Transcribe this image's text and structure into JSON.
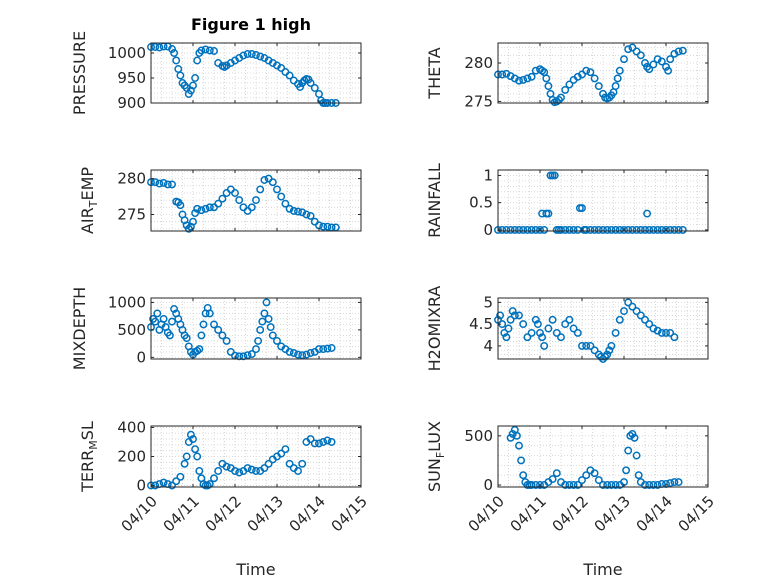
{
  "figure_title": "Figure 1 high",
  "colors": {
    "marker": "#0072BD",
    "grid": "#cfcfcf",
    "axis": "#262626"
  },
  "chart_data": [
    {
      "type": "scatter",
      "ylabel": "PRESSURE",
      "ylim": [
        900,
        1020
      ],
      "yticks": [
        900,
        950,
        1000
      ],
      "ytick_labels": [
        "900",
        "950",
        "1000"
      ],
      "xlim": [
        0,
        5
      ],
      "xticks": [
        0,
        1,
        2,
        3,
        4,
        5
      ],
      "grid": true,
      "x_tick_labels": [],
      "xlabel": "",
      "x": [
        0.0,
        0.1,
        0.2,
        0.3,
        0.4,
        0.5,
        0.55,
        0.6,
        0.65,
        0.7,
        0.75,
        0.8,
        0.85,
        0.9,
        0.95,
        1.0,
        1.05,
        1.1,
        1.15,
        1.2,
        1.3,
        1.4,
        1.5,
        1.6,
        1.7,
        1.75,
        1.8,
        1.9,
        2.0,
        2.1,
        2.2,
        2.3,
        2.4,
        2.5,
        2.6,
        2.7,
        2.8,
        2.9,
        3.0,
        3.1,
        3.2,
        3.3,
        3.4,
        3.5,
        3.55,
        3.6,
        3.65,
        3.7,
        3.75,
        3.8,
        3.9,
        4.0,
        4.05,
        4.1,
        4.15,
        4.2,
        4.3,
        4.4
      ],
      "y": [
        1012,
        1012,
        1011,
        1013,
        1013,
        1008,
        1000,
        985,
        968,
        955,
        940,
        935,
        930,
        918,
        925,
        935,
        950,
        985,
        1000,
        1005,
        1007,
        1005,
        1004,
        980,
        974,
        972,
        975,
        980,
        985,
        990,
        995,
        998,
        998,
        996,
        993,
        990,
        985,
        980,
        975,
        970,
        962,
        955,
        945,
        938,
        932,
        940,
        945,
        948,
        947,
        940,
        930,
        918,
        905,
        900,
        900,
        900,
        900,
        900
      ]
    },
    {
      "type": "scatter",
      "ylabel": "THETA",
      "ylim": [
        274.8,
        282.6
      ],
      "yticks": [
        275,
        280
      ],
      "ytick_labels": [
        "275",
        "280"
      ],
      "xlim": [
        0,
        5
      ],
      "xticks": [
        0,
        1,
        2,
        3,
        4,
        5
      ],
      "grid": true,
      "x_tick_labels": [],
      "xlabel": "",
      "x": [
        0.0,
        0.1,
        0.2,
        0.3,
        0.4,
        0.5,
        0.6,
        0.7,
        0.8,
        0.9,
        1.0,
        1.05,
        1.1,
        1.15,
        1.2,
        1.25,
        1.3,
        1.35,
        1.4,
        1.45,
        1.5,
        1.6,
        1.7,
        1.8,
        1.9,
        2.0,
        2.1,
        2.2,
        2.3,
        2.4,
        2.5,
        2.55,
        2.6,
        2.65,
        2.7,
        2.75,
        2.8,
        2.85,
        2.9,
        3.0,
        3.1,
        3.2,
        3.3,
        3.4,
        3.5,
        3.55,
        3.6,
        3.7,
        3.8,
        3.9,
        4.0,
        4.05,
        4.1,
        4.2,
        4.3,
        4.4
      ],
      "y": [
        278.5,
        278.5,
        278.6,
        278.3,
        278.0,
        277.7,
        277.8,
        278.0,
        278.2,
        279.0,
        279.2,
        279.0,
        278.8,
        278.0,
        277.0,
        276.0,
        275.2,
        274.9,
        275.0,
        275.2,
        275.5,
        276.5,
        277.2,
        277.8,
        278.2,
        278.5,
        279.0,
        278.8,
        278.0,
        277.0,
        276.0,
        275.5,
        275.4,
        275.5,
        275.8,
        276.2,
        277.0,
        278.0,
        279.0,
        280.5,
        281.8,
        282.0,
        281.5,
        281.0,
        280.0,
        279.5,
        279.2,
        279.8,
        280.5,
        280.2,
        279.5,
        279.0,
        280.5,
        281.2,
        281.5,
        281.6
      ]
    },
    {
      "type": "scatter",
      "ylabel": "AIR_TEMP",
      "ylim": [
        272.7,
        281.2
      ],
      "yticks": [
        275,
        280
      ],
      "ytick_labels": [
        "275",
        "280"
      ],
      "xlim": [
        0,
        5
      ],
      "xticks": [
        0,
        1,
        2,
        3,
        4,
        5
      ],
      "grid": true,
      "x_tick_labels": [],
      "xlabel": "",
      "x": [
        0.0,
        0.1,
        0.2,
        0.3,
        0.4,
        0.5,
        0.6,
        0.65,
        0.7,
        0.75,
        0.8,
        0.85,
        0.9,
        0.95,
        1.0,
        1.05,
        1.1,
        1.2,
        1.3,
        1.4,
        1.5,
        1.6,
        1.7,
        1.8,
        1.9,
        2.0,
        2.1,
        2.2,
        2.3,
        2.4,
        2.5,
        2.6,
        2.7,
        2.8,
        2.9,
        3.0,
        3.1,
        3.2,
        3.3,
        3.4,
        3.5,
        3.6,
        3.7,
        3.8,
        3.9,
        4.0,
        4.1,
        4.2,
        4.3,
        4.4
      ],
      "y": [
        279.5,
        279.5,
        279.3,
        279.4,
        279.2,
        279.2,
        276.8,
        276.7,
        276.3,
        275.0,
        274.2,
        273.5,
        273.0,
        273.3,
        274.0,
        275.2,
        275.8,
        275.6,
        275.8,
        276.0,
        276.0,
        276.5,
        277.2,
        278.0,
        278.5,
        278.0,
        277.0,
        276.0,
        275.5,
        276.0,
        277.0,
        278.5,
        279.8,
        280.0,
        279.5,
        278.5,
        277.5,
        276.5,
        275.8,
        275.5,
        275.4,
        275.3,
        275.0,
        274.8,
        274.0,
        273.5,
        273.3,
        273.3,
        273.2,
        273.2
      ]
    },
    {
      "type": "scatter",
      "ylabel": "RAINFALL",
      "ylim": [
        -0.02,
        1.1
      ],
      "yticks": [
        0,
        0.5,
        1
      ],
      "ytick_labels": [
        "0",
        "0.5",
        "1"
      ],
      "xlim": [
        0,
        5
      ],
      "xticks": [
        0,
        1,
        2,
        3,
        4,
        5
      ],
      "grid": true,
      "x_tick_labels": [],
      "xlabel": "",
      "x": [
        0.0,
        0.1,
        0.2,
        0.3,
        0.4,
        0.5,
        0.6,
        0.7,
        0.8,
        0.9,
        1.0,
        1.05,
        1.1,
        1.15,
        1.2,
        1.25,
        1.3,
        1.35,
        1.4,
        1.45,
        1.5,
        1.6,
        1.7,
        1.8,
        1.9,
        1.95,
        2.0,
        2.05,
        2.1,
        2.2,
        2.3,
        2.4,
        2.5,
        2.6,
        2.7,
        2.8,
        2.9,
        3.0,
        3.1,
        3.2,
        3.3,
        3.4,
        3.5,
        3.55,
        3.6,
        3.7,
        3.8,
        3.9,
        4.0,
        4.1,
        4.2,
        4.3,
        4.4
      ],
      "y": [
        0,
        0,
        0,
        0,
        0,
        0,
        0,
        0,
        0,
        0,
        0,
        0.3,
        0,
        0.3,
        0.3,
        1.0,
        1.0,
        1.0,
        0,
        0,
        0,
        0,
        0,
        0,
        0,
        0.4,
        0.4,
        0,
        0,
        0,
        0,
        0,
        0,
        0,
        0,
        0,
        0,
        0,
        0,
        0,
        0,
        0,
        0,
        0.3,
        0,
        0,
        0,
        0,
        0,
        0,
        0,
        0,
        0
      ]
    },
    {
      "type": "scatter",
      "ylabel": "MIXDEPTH",
      "ylim": [
        -30,
        1080
      ],
      "yticks": [
        0,
        500,
        1000
      ],
      "ytick_labels": [
        "0",
        "500",
        "1000"
      ],
      "xlim": [
        0,
        5
      ],
      "xticks": [
        0,
        1,
        2,
        3,
        4,
        5
      ],
      "grid": true,
      "x_tick_labels": [],
      "xlabel": "",
      "x": [
        0.0,
        0.05,
        0.1,
        0.15,
        0.2,
        0.25,
        0.3,
        0.35,
        0.4,
        0.45,
        0.5,
        0.55,
        0.6,
        0.65,
        0.7,
        0.75,
        0.8,
        0.85,
        0.9,
        0.95,
        1.0,
        1.05,
        1.1,
        1.15,
        1.2,
        1.25,
        1.3,
        1.35,
        1.4,
        1.5,
        1.6,
        1.7,
        1.8,
        1.9,
        2.0,
        2.1,
        2.2,
        2.3,
        2.4,
        2.5,
        2.55,
        2.6,
        2.65,
        2.7,
        2.75,
        2.8,
        2.85,
        2.9,
        3.0,
        3.1,
        3.2,
        3.3,
        3.4,
        3.5,
        3.6,
        3.7,
        3.8,
        3.9,
        4.0,
        4.1,
        4.2,
        4.3
      ],
      "y": [
        550,
        700,
        650,
        800,
        500,
        600,
        700,
        550,
        450,
        400,
        650,
        880,
        800,
        700,
        600,
        500,
        400,
        350,
        200,
        100,
        50,
        100,
        120,
        150,
        400,
        600,
        800,
        900,
        800,
        600,
        500,
        400,
        300,
        100,
        30,
        20,
        20,
        40,
        60,
        150,
        300,
        500,
        650,
        800,
        1000,
        700,
        550,
        400,
        300,
        200,
        150,
        100,
        80,
        50,
        40,
        50,
        80,
        100,
        150,
        150,
        160,
        170
      ]
    },
    {
      "type": "scatter",
      "ylabel": "H2OMIXRA",
      "ylim": [
        3.7,
        5.1
      ],
      "yticks": [
        4,
        4.5,
        5
      ],
      "ytick_labels": [
        "4",
        "4.5",
        "5"
      ],
      "xlim": [
        0,
        5
      ],
      "xticks": [
        0,
        1,
        2,
        3,
        4,
        5
      ],
      "grid": true,
      "x_tick_labels": [],
      "xlabel": "",
      "x": [
        0.0,
        0.05,
        0.1,
        0.15,
        0.2,
        0.25,
        0.3,
        0.35,
        0.4,
        0.5,
        0.6,
        0.7,
        0.8,
        0.9,
        0.95,
        1.0,
        1.05,
        1.1,
        1.2,
        1.3,
        1.4,
        1.5,
        1.6,
        1.7,
        1.8,
        1.9,
        2.0,
        2.1,
        2.2,
        2.3,
        2.4,
        2.45,
        2.5,
        2.55,
        2.6,
        2.65,
        2.7,
        2.8,
        2.9,
        3.0,
        3.1,
        3.2,
        3.3,
        3.4,
        3.5,
        3.6,
        3.7,
        3.8,
        3.9,
        4.0,
        4.1,
        4.2
      ],
      "y": [
        4.6,
        4.7,
        4.5,
        4.3,
        4.2,
        4.4,
        4.6,
        4.8,
        4.7,
        4.7,
        4.5,
        4.2,
        4.3,
        4.6,
        4.5,
        4.3,
        4.2,
        4.0,
        4.4,
        4.6,
        4.3,
        4.2,
        4.5,
        4.6,
        4.4,
        4.3,
        4.0,
        4.0,
        4.0,
        3.9,
        3.8,
        3.75,
        3.7,
        3.75,
        3.8,
        3.9,
        4.0,
        4.3,
        4.6,
        4.8,
        5.0,
        4.9,
        4.8,
        4.7,
        4.6,
        4.5,
        4.4,
        4.35,
        4.3,
        4.3,
        4.3,
        4.2
      ]
    },
    {
      "type": "scatter",
      "ylabel": "TERR_MSL",
      "ylim": [
        -10,
        410
      ],
      "yticks": [
        0,
        200,
        400
      ],
      "ytick_labels": [
        "0",
        "200",
        "400"
      ],
      "xlim": [
        0,
        5
      ],
      "xticks": [
        0,
        1,
        2,
        3,
        4,
        5
      ],
      "grid": true,
      "x_tick_labels": [
        "04/10",
        "04/11",
        "04/12",
        "04/13",
        "04/14",
        "04/15"
      ],
      "xlabel": "Time",
      "x": [
        0.0,
        0.1,
        0.2,
        0.3,
        0.4,
        0.5,
        0.6,
        0.7,
        0.8,
        0.85,
        0.9,
        0.95,
        1.0,
        1.05,
        1.1,
        1.15,
        1.2,
        1.25,
        1.3,
        1.35,
        1.4,
        1.5,
        1.6,
        1.7,
        1.8,
        1.9,
        2.0,
        2.1,
        2.2,
        2.3,
        2.4,
        2.5,
        2.6,
        2.7,
        2.8,
        2.9,
        3.0,
        3.1,
        3.2,
        3.3,
        3.4,
        3.5,
        3.6,
        3.7,
        3.8,
        3.9,
        4.0,
        4.1,
        4.2,
        4.3
      ],
      "y": [
        0,
        0,
        10,
        20,
        10,
        0,
        30,
        60,
        150,
        200,
        300,
        350,
        320,
        250,
        200,
        100,
        50,
        10,
        0,
        0,
        10,
        50,
        100,
        150,
        130,
        120,
        100,
        90,
        100,
        120,
        110,
        100,
        100,
        120,
        150,
        180,
        200,
        220,
        250,
        150,
        120,
        100,
        150,
        300,
        320,
        290,
        290,
        300,
        310,
        300
      ]
    },
    {
      "type": "scatter",
      "ylabel": "SUN_FLUX",
      "ylim": [
        -20,
        600
      ],
      "yticks": [
        0,
        500
      ],
      "ytick_labels": [
        "0",
        "500"
      ],
      "xlim": [
        0,
        5
      ],
      "xticks": [
        0,
        1,
        2,
        3,
        4,
        5
      ],
      "grid": true,
      "x_tick_labels": [
        "04/10",
        "04/11",
        "04/12",
        "04/13",
        "04/14",
        "04/15"
      ],
      "xlabel": "Time",
      "x": [
        0.3,
        0.35,
        0.4,
        0.45,
        0.5,
        0.55,
        0.6,
        0.65,
        0.7,
        0.75,
        0.8,
        0.9,
        1.0,
        1.1,
        1.2,
        1.3,
        1.4,
        1.5,
        1.6,
        1.7,
        1.8,
        1.9,
        2.0,
        2.1,
        2.2,
        2.3,
        2.4,
        2.5,
        2.6,
        2.7,
        2.8,
        2.9,
        3.0,
        3.05,
        3.1,
        3.15,
        3.2,
        3.25,
        3.3,
        3.35,
        3.4,
        3.5,
        3.6,
        3.7,
        3.8,
        3.9,
        4.0,
        4.1,
        4.2,
        4.3
      ],
      "y": [
        480,
        520,
        560,
        500,
        400,
        250,
        100,
        30,
        0,
        0,
        0,
        0,
        0,
        0,
        30,
        60,
        120,
        30,
        0,
        0,
        0,
        0,
        50,
        100,
        150,
        120,
        50,
        0,
        0,
        0,
        0,
        0,
        30,
        150,
        350,
        500,
        520,
        480,
        300,
        100,
        30,
        0,
        0,
        0,
        0,
        10,
        10,
        20,
        30,
        30
      ]
    }
  ]
}
